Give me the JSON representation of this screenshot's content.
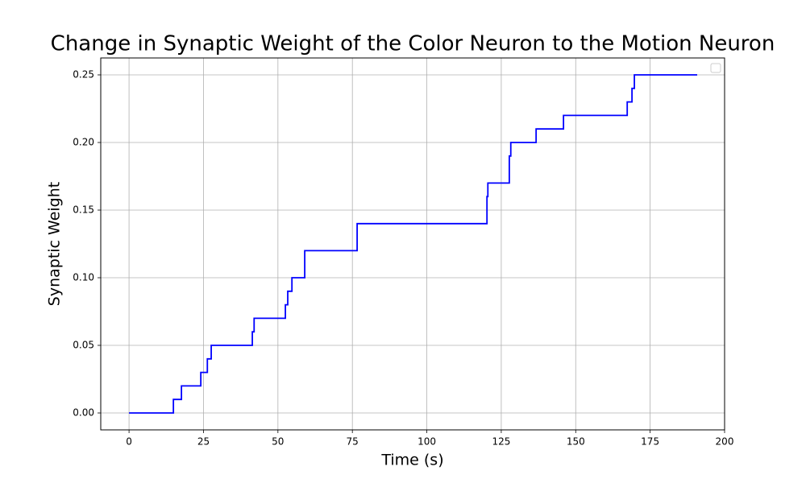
{
  "chart_data": {
    "type": "line",
    "title": "Change in Synaptic Weight of the Color Neuron to the Motion Neuron",
    "x_label": "Time (s)",
    "y_label": "Synaptic Weight",
    "x": [
      0,
      14.9,
      14.9,
      17.6,
      17.6,
      24.1,
      24.1,
      26.3,
      26.3,
      27.6,
      27.6,
      41.4,
      41.4,
      42.0,
      42.0,
      52.5,
      52.5,
      53.3,
      53.3,
      54.7,
      54.7,
      59.0,
      59.0,
      76.6,
      76.6,
      120.2,
      120.2,
      120.5,
      120.5,
      127.7,
      127.7,
      128.2,
      128.2,
      136.7,
      136.7,
      145.9,
      145.9,
      167.3,
      167.3,
      168.9,
      168.9,
      169.7,
      169.7,
      190.8
    ],
    "values": [
      0,
      0,
      0.01,
      0.01,
      0.02,
      0.02,
      0.03,
      0.03,
      0.04,
      0.04,
      0.05,
      0.05,
      0.06,
      0.06,
      0.07,
      0.07,
      0.08,
      0.08,
      0.09,
      0.09,
      0.1,
      0.1,
      0.12,
      0.12,
      0.14,
      0.14,
      0.16,
      0.16,
      0.17,
      0.17,
      0.19,
      0.19,
      0.2,
      0.2,
      0.21,
      0.21,
      0.22,
      0.22,
      0.23,
      0.23,
      0.24,
      0.24,
      0.25,
      0.25
    ],
    "color": "#0000ff",
    "xlim": [
      -9.5,
      200
    ],
    "ylim": [
      -0.0125,
      0.2625
    ],
    "xticks": [
      0,
      25,
      50,
      75,
      100,
      125,
      150,
      175,
      200
    ],
    "yticks": [
      {
        "value": 0,
        "label": "0.00"
      },
      {
        "value": 0.05,
        "label": "0.05"
      },
      {
        "value": 0.1,
        "label": "0.10"
      },
      {
        "value": 0.15,
        "label": "0.15"
      },
      {
        "value": 0.2,
        "label": "0.20"
      },
      {
        "value": 0.25,
        "label": "0.25"
      }
    ],
    "grid": true
  }
}
